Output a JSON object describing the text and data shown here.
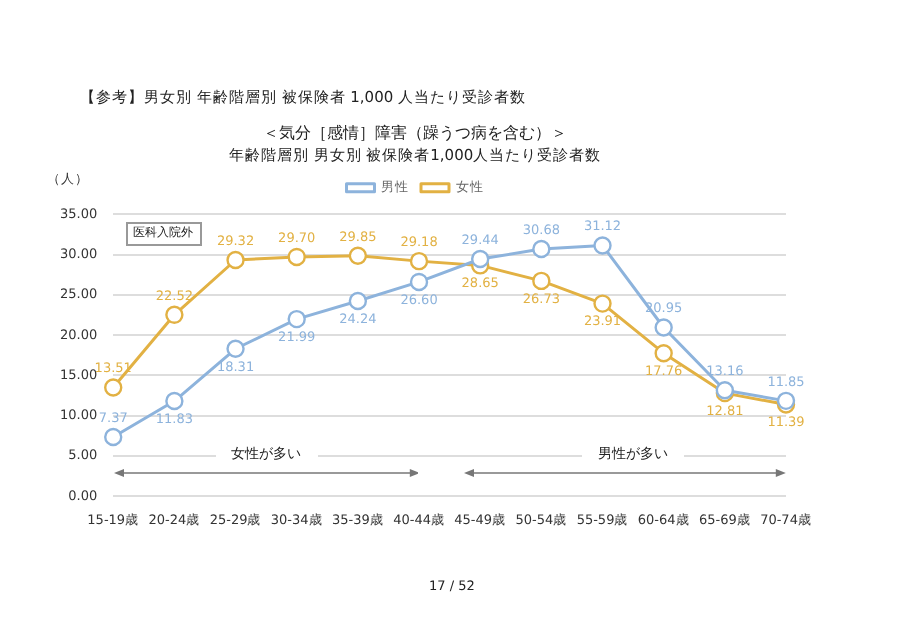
{
  "chart_data": {
    "type": "line",
    "title": "＜気分［感情］障害（躁うつ病を含む）＞",
    "subtitle": "年齢階層別 男女別 被保険者1,000人当たり受診者数",
    "ylabel": "（人）",
    "categories": [
      "15-19歳",
      "20-24歳",
      "25-29歳",
      "30-34歳",
      "35-39歳",
      "40-44歳",
      "45-49歳",
      "50-54歳",
      "55-59歳",
      "60-64歳",
      "65-69歳",
      "70-74歳"
    ],
    "series": [
      {
        "name": "男性",
        "color": "#8db3dc",
        "values": [
          7.37,
          11.83,
          18.31,
          21.99,
          24.24,
          26.6,
          29.44,
          30.68,
          31.12,
          20.95,
          13.16,
          11.85
        ],
        "value_labels": [
          "7.37",
          "11.83",
          "18.31",
          "21.99",
          "24.24",
          "26.60",
          "29.44",
          "30.68",
          "31.12",
          "20.95",
          "13.16",
          "11.85"
        ]
      },
      {
        "name": "女性",
        "color": "#e2b143",
        "values": [
          13.51,
          22.52,
          29.32,
          29.7,
          29.85,
          29.18,
          28.65,
          26.73,
          23.91,
          17.76,
          12.81,
          11.39
        ],
        "value_labels": [
          "13.51",
          "22.52",
          "29.32",
          "29.70",
          "29.85",
          "29.18",
          "28.65",
          "26.73",
          "23.91",
          "17.76",
          "12.81",
          "11.39"
        ]
      }
    ],
    "ylim": [
      0,
      35
    ],
    "yticks": [
      {
        "value": 0,
        "label": "0.00"
      },
      {
        "value": 5,
        "label": "5.00"
      },
      {
        "value": 10,
        "label": "10.00"
      },
      {
        "value": 15,
        "label": "15.00"
      },
      {
        "value": 20,
        "label": "20.00"
      },
      {
        "value": 25,
        "label": "25.00"
      },
      {
        "value": 30,
        "label": "30.00"
      },
      {
        "value": 35,
        "label": "35.00"
      }
    ],
    "grid": "y",
    "legend": "top",
    "marker": "circle",
    "line_style": "solid",
    "annotations": [
      "【参考】男女別 年齢階層別 被保険者 1,000 人当たり受診者数",
      "医科入院外",
      "女性が多い",
      "男性が多い",
      "17 / 52"
    ]
  }
}
